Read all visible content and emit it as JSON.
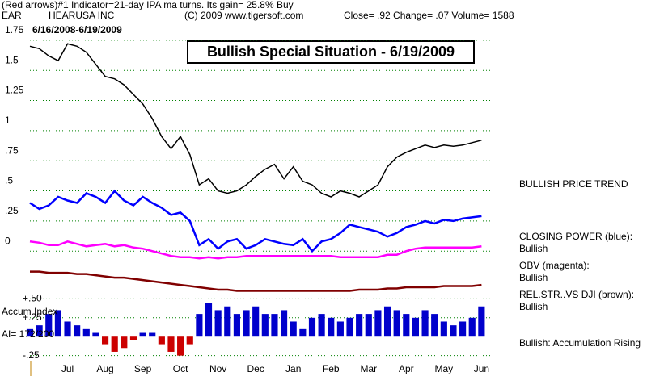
{
  "header": {
    "indicator": "(Red arrows)#1 Indicator=21-day IPA ma turns. Its gain= 25.8% Buy",
    "symbol": "EAR",
    "company": "HEARUSA INC",
    "copyright": "(C) 2009 www.tigersoft.com",
    "quote": "Close=  .92  Change= .07 Volume= 1588",
    "range": "6/16/2008-6/19/2009",
    "box_title": "Bullish Special Situation - 6/19/2009"
  },
  "chart_data": [
    {
      "type": "line",
      "xlim": [
        0.5,
        12.75
      ],
      "ylim": [
        -0.36,
        1.97
      ],
      "grid": true,
      "yticks": [
        {
          "value": 0,
          "label": "0"
        },
        {
          "value": 0.25,
          "label": ".25"
        },
        {
          "value": 0.5,
          "label": ".5"
        },
        {
          "value": 0.75,
          "label": ".75"
        },
        {
          "value": 1,
          "label": "1"
        },
        {
          "value": 1.25,
          "label": "1.25"
        },
        {
          "value": 1.5,
          "label": "1.5"
        },
        {
          "value": 1.75,
          "label": "1.75"
        }
      ],
      "x": [
        0.5,
        0.75,
        1,
        1.25,
        1.5,
        1.75,
        2,
        2.25,
        2.5,
        2.75,
        3,
        3.25,
        3.5,
        3.75,
        4,
        4.25,
        4.5,
        4.75,
        5,
        5.25,
        5.5,
        5.75,
        6,
        6.25,
        6.5,
        6.75,
        7,
        7.25,
        7.5,
        7.75,
        8,
        8.25,
        8.5,
        8.75,
        9,
        9.25,
        9.5,
        9.75,
        10,
        10.25,
        10.5,
        10.75,
        11,
        11.25,
        11.5,
        11.75,
        12,
        12.25,
        12.5
      ],
      "series": [
        {
          "color": "#000000",
          "values": [
            1.7,
            1.68,
            1.62,
            1.58,
            1.72,
            1.7,
            1.65,
            1.55,
            1.45,
            1.43,
            1.38,
            1.3,
            1.22,
            1.1,
            0.95,
            0.85,
            0.95,
            0.8,
            0.55,
            0.6,
            0.5,
            0.48,
            0.5,
            0.55,
            0.62,
            0.68,
            0.72,
            0.6,
            0.7,
            0.58,
            0.55,
            0.48,
            0.45,
            0.5,
            0.48,
            0.45,
            0.5,
            0.55,
            0.7,
            0.78,
            0.82,
            0.85,
            0.88,
            0.86,
            0.88,
            0.87,
            0.88,
            0.9,
            0.92
          ]
        },
        {
          "color": "#0000ff",
          "values": [
            0.4,
            0.35,
            0.38,
            0.45,
            0.42,
            0.4,
            0.48,
            0.45,
            0.4,
            0.5,
            0.42,
            0.38,
            0.45,
            0.4,
            0.36,
            0.3,
            0.32,
            0.25,
            0.05,
            0.1,
            0.02,
            0.08,
            0.1,
            0.02,
            0.05,
            0.1,
            0.08,
            0.06,
            0.05,
            0.1,
            0,
            0.08,
            0.1,
            0.15,
            0.22,
            0.2,
            0.18,
            0.16,
            0.12,
            0.15,
            0.2,
            0.22,
            0.25,
            0.23,
            0.26,
            0.25,
            0.27,
            0.28,
            0.29
          ]
        },
        {
          "color": "#ff00ff",
          "values": [
            0.08,
            0.07,
            0.05,
            0.05,
            0.08,
            0.06,
            0.04,
            0.05,
            0.06,
            0.04,
            0.05,
            0.03,
            0.02,
            0,
            -0.02,
            -0.04,
            -0.05,
            -0.05,
            -0.06,
            -0.05,
            -0.06,
            -0.05,
            -0.05,
            -0.04,
            -0.04,
            -0.04,
            -0.04,
            -0.04,
            -0.04,
            -0.04,
            -0.04,
            -0.04,
            -0.04,
            -0.05,
            -0.05,
            -0.05,
            -0.05,
            -0.05,
            -0.03,
            -0.03,
            0,
            0.02,
            0.03,
            0.03,
            0.03,
            0.03,
            0.03,
            0.03,
            0.04
          ]
        },
        {
          "color": "#800000",
          "values": [
            -0.17,
            -0.17,
            -0.18,
            -0.18,
            -0.18,
            -0.19,
            -0.19,
            -0.2,
            -0.21,
            -0.22,
            -0.22,
            -0.23,
            -0.24,
            -0.25,
            -0.26,
            -0.27,
            -0.28,
            -0.29,
            -0.3,
            -0.31,
            -0.32,
            -0.32,
            -0.33,
            -0.33,
            -0.33,
            -0.33,
            -0.33,
            -0.33,
            -0.33,
            -0.33,
            -0.33,
            -0.33,
            -0.33,
            -0.33,
            -0.33,
            -0.32,
            -0.32,
            -0.32,
            -0.31,
            -0.31,
            -0.3,
            -0.3,
            -0.3,
            -0.3,
            -0.29,
            -0.29,
            -0.29,
            -0.29,
            -0.28
          ]
        }
      ],
      "annotations": [
        "BULLISH PRICE TREND",
        "CLOSING POWER (blue):",
        "Bullish",
        "OBV (magenta):",
        "Bullish",
        "REL.STR..VS DJI (brown):",
        "Bullish",
        "Bullish: Accumulation Rising"
      ]
    },
    {
      "type": "bar",
      "title": "Accum Index",
      "subtitle": "AI= 172/200",
      "xlim": [
        0.5,
        12.75
      ],
      "ylim": [
        -0.35,
        0.6
      ],
      "grid": true,
      "color": "#0000cc",
      "negative_color": "#cc0000",
      "yticks": [
        {
          "value": 0.5,
          "label": "+.50"
        },
        {
          "value": 0.25,
          "label": "+.25"
        },
        {
          "value": -0.25,
          "label": "-.25"
        }
      ],
      "xticks": [
        {
          "value": 1.5,
          "label": "Jul"
        },
        {
          "value": 2.5,
          "label": "Aug"
        },
        {
          "value": 3.5,
          "label": "Sep"
        },
        {
          "value": 4.5,
          "label": "Oct"
        },
        {
          "value": 5.5,
          "label": "Nov"
        },
        {
          "value": 6.5,
          "label": "Dec"
        },
        {
          "value": 7.5,
          "label": "Jan"
        },
        {
          "value": 8.5,
          "label": "Feb"
        },
        {
          "value": 9.5,
          "label": "Mar"
        },
        {
          "value": 10.5,
          "label": "Apr"
        },
        {
          "value": 11.5,
          "label": "May"
        },
        {
          "value": 12.5,
          "label": "Jun"
        }
      ],
      "x": [
        0.5,
        0.75,
        1,
        1.25,
        1.5,
        1.75,
        2,
        2.25,
        2.5,
        2.75,
        3,
        3.25,
        3.5,
        3.75,
        4,
        4.25,
        4.5,
        4.75,
        5,
        5.25,
        5.5,
        5.75,
        6,
        6.25,
        6.5,
        6.75,
        7,
        7.25,
        7.5,
        7.75,
        8,
        8.25,
        8.5,
        8.75,
        9,
        9.25,
        9.5,
        9.75,
        10,
        10.25,
        10.5,
        10.75,
        11,
        11.25,
        11.5,
        11.75,
        12,
        12.25,
        12.5
      ],
      "values": [
        0.1,
        0.15,
        0.3,
        0.35,
        0.2,
        0.15,
        0.1,
        0.05,
        -0.1,
        -0.2,
        -0.15,
        -0.05,
        0.05,
        0.05,
        -0.1,
        -0.2,
        -0.25,
        -0.1,
        0.3,
        0.45,
        0.35,
        0.4,
        0.3,
        0.35,
        0.4,
        0.3,
        0.3,
        0.35,
        0.2,
        0.1,
        0.25,
        0.3,
        0.25,
        0.2,
        0.25,
        0.3,
        0.3,
        0.35,
        0.4,
        0.35,
        0.3,
        0.25,
        0.35,
        0.3,
        0.2,
        0.15,
        0.2,
        0.25,
        0.4
      ]
    }
  ]
}
